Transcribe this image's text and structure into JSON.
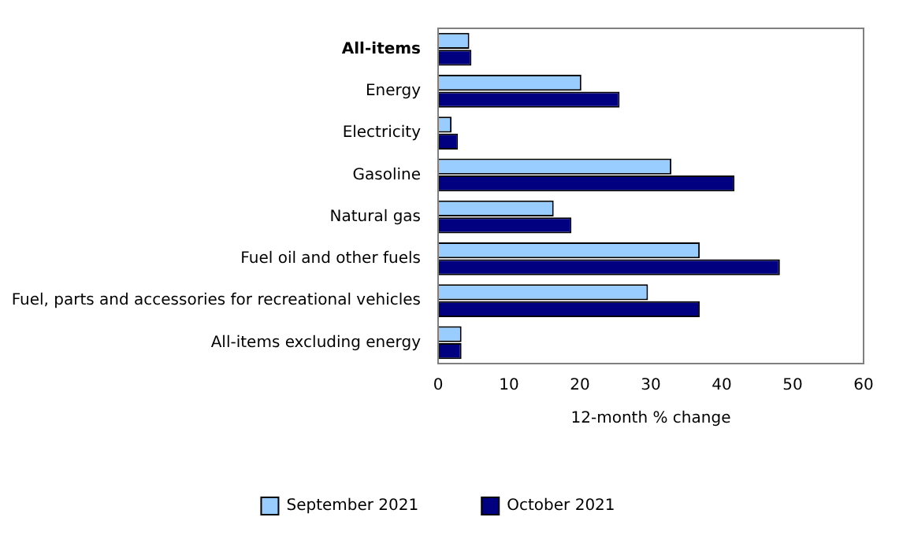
{
  "chart_data": {
    "type": "bar",
    "orientation": "horizontal",
    "xlabel": "12-month % change",
    "categories": [
      "All-items",
      "Energy",
      "Electricity",
      "Gasoline",
      "Natural gas",
      "Fuel oil and other fuels",
      "Fuel, parts and accessories for recreational vehicles",
      "All-items excluding energy"
    ],
    "series": [
      {
        "name": "September 2021",
        "color": "#99ccff",
        "values": [
          4.4,
          20.2,
          1.9,
          32.9,
          16.3,
          36.9,
          29.6,
          3.3
        ]
      },
      {
        "name": "October 2021",
        "color": "#000080",
        "values": [
          4.7,
          25.6,
          2.8,
          41.8,
          18.8,
          48.2,
          36.9,
          3.3
        ]
      }
    ],
    "xlim": [
      0,
      60
    ],
    "xticks": [
      0,
      10,
      20,
      30,
      40,
      50,
      60
    ],
    "grid": false,
    "legend": "bottom"
  }
}
